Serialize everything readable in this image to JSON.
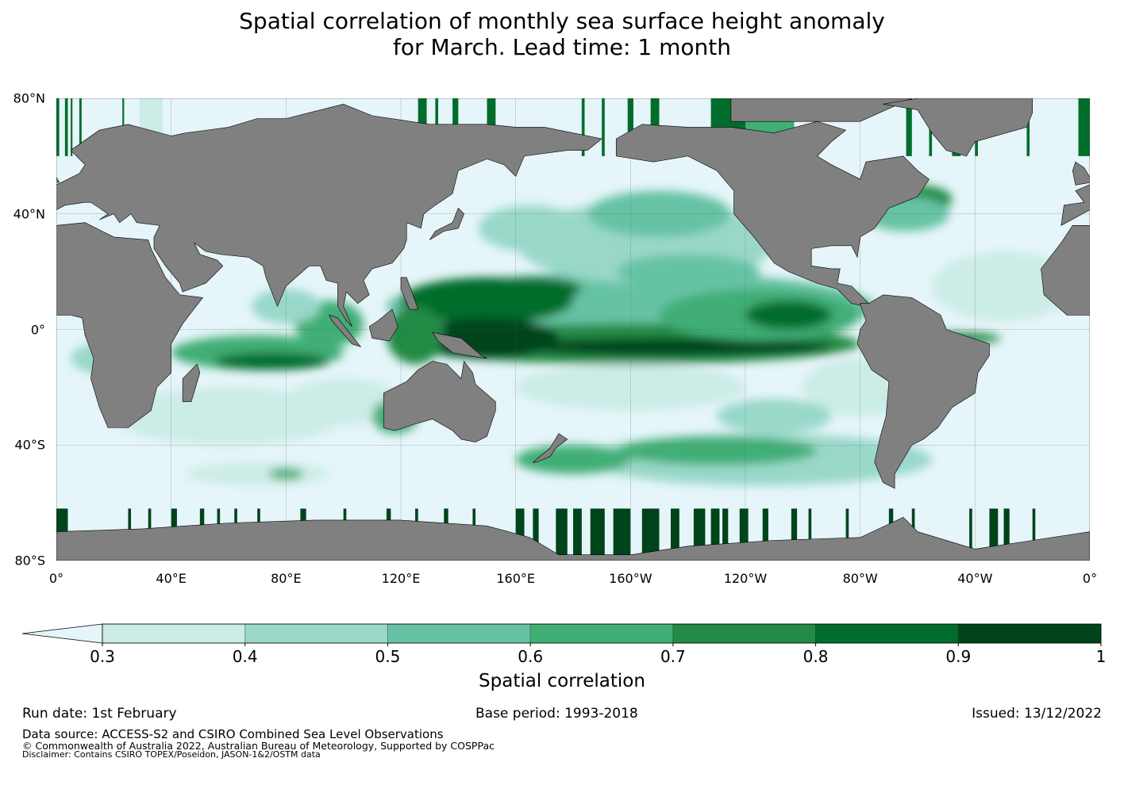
{
  "title_line1": "Spatial correlation of monthly sea surface height anomaly",
  "title_line2": "for March. Lead time: 1 month",
  "chart_data": {
    "type": "heatmap",
    "title": "Spatial correlation of monthly sea surface height anomaly for March. Lead time: 1 month",
    "projection": "plate carree, 0° to 360°",
    "lat_ticks": [
      "80°N",
      "40°N",
      "0°",
      "40°S",
      "80°S"
    ],
    "lat_values": [
      80,
      40,
      0,
      -40,
      -80
    ],
    "lon_ticks": [
      "0°",
      "40°E",
      "80°E",
      "120°E",
      "160°E",
      "160°W",
      "120°W",
      "80°W",
      "40°W",
      "0°"
    ],
    "lon_values": [
      0,
      40,
      80,
      120,
      160,
      200,
      240,
      280,
      320,
      360
    ],
    "colorbar": {
      "label": "Spatial correlation",
      "levels": [
        0.3,
        0.4,
        0.5,
        0.6,
        0.7,
        0.8,
        0.9,
        1
      ],
      "tick_labels": [
        "0.3",
        "0.4",
        "0.5",
        "0.6",
        "0.7",
        "0.8",
        "0.9",
        "1"
      ],
      "colors": [
        "#ccece6",
        "#99d8c9",
        "#66c2a4",
        "#41ae76",
        "#238b45",
        "#006d2c",
        "#00441b"
      ],
      "under_color": "#e5f5f9",
      "extend": "min"
    },
    "land_color": "#808080"
  },
  "footer": {
    "run_date": "Run date: 1st February",
    "base_period": "Base period: 1993-2018",
    "issued": "Issued: 13/12/2022",
    "data_source": "Data source: ACCESS-S2 and CSIRO Combined Sea Level Observations",
    "copyright": "© Commonwealth of Australia 2022, Australian Bureau of Meteorology, Supported by COSPPac",
    "disclaimer": "Disclaimer: Contains CSIRO TOPEX/Poseidon, JASON-1&2/OSTM data"
  }
}
